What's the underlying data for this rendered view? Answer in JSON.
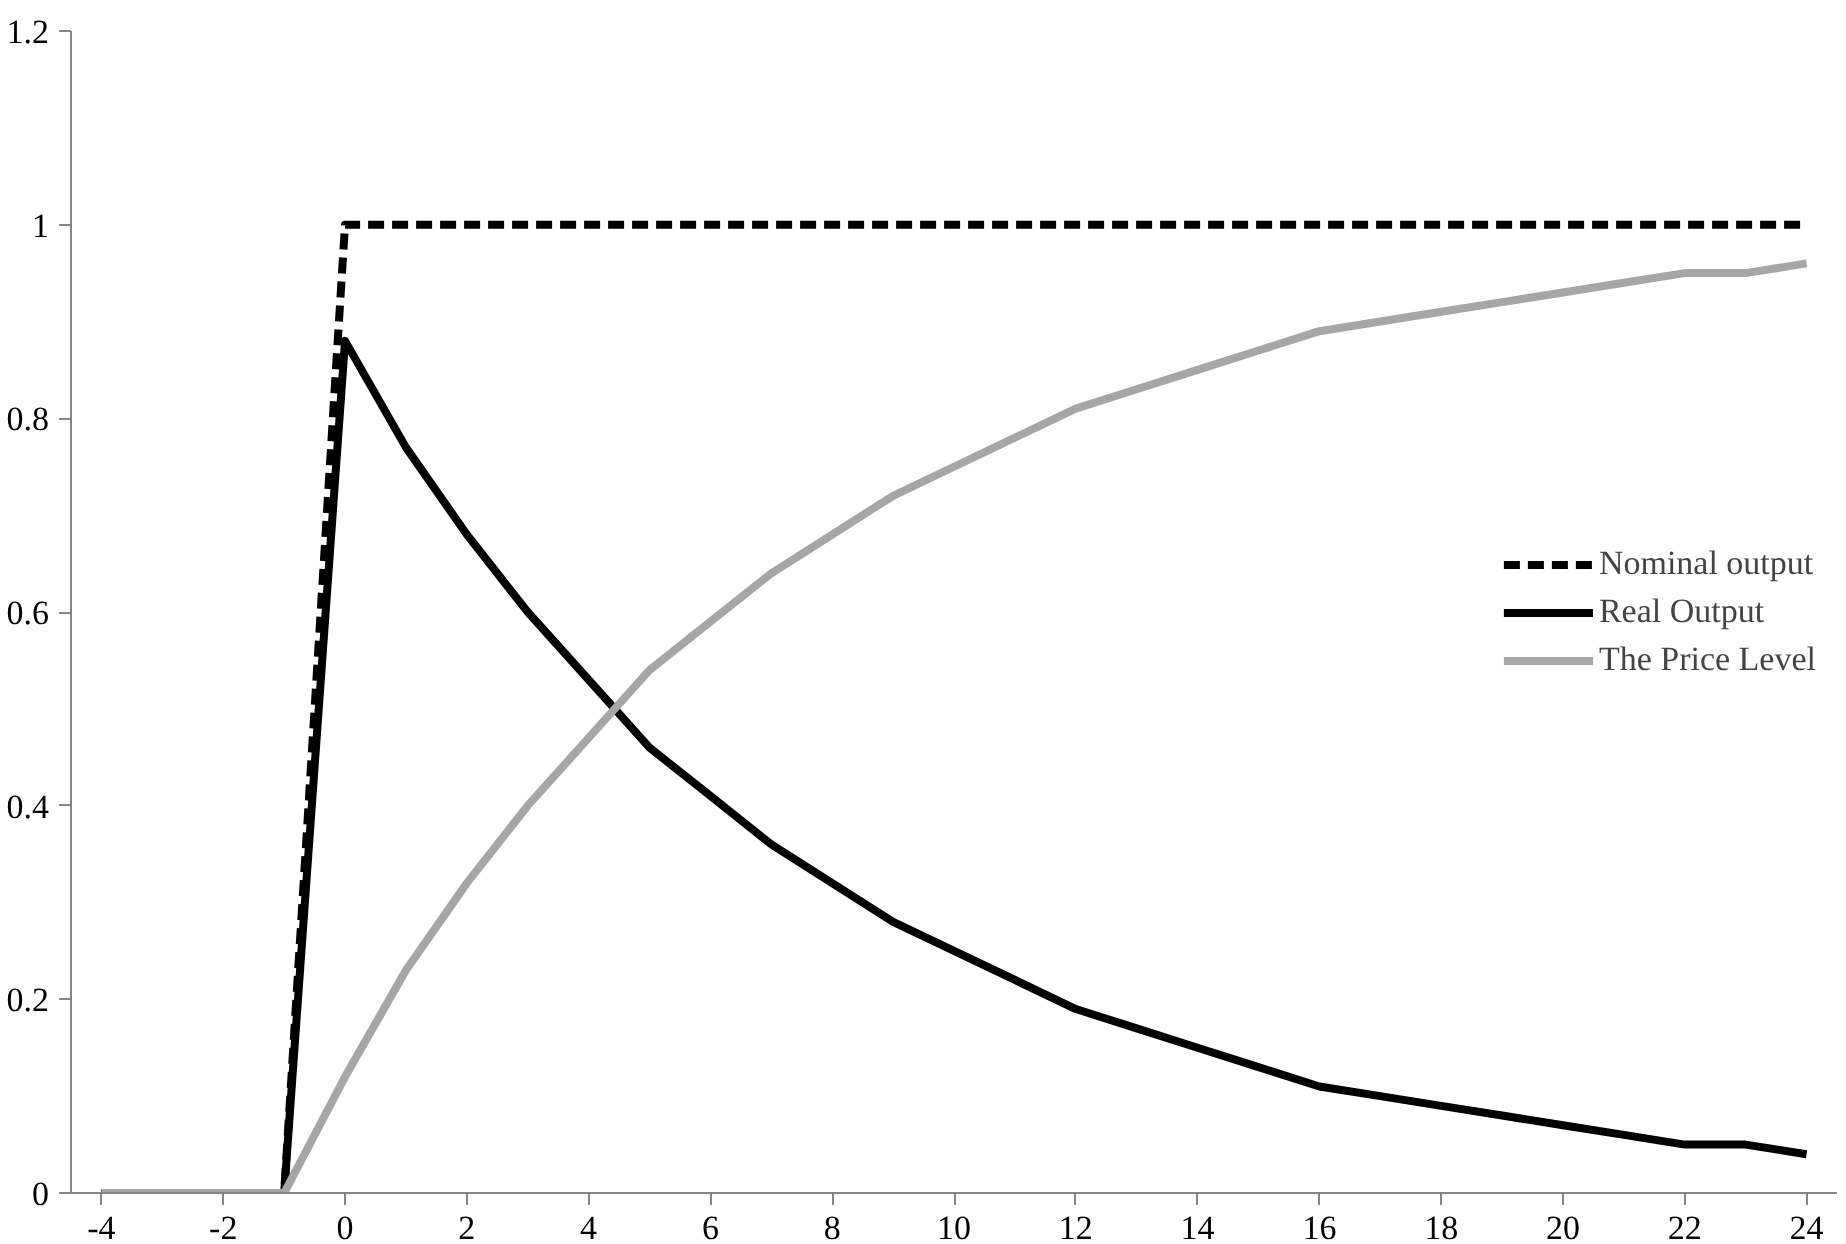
{
  "chart_data": {
    "type": "line",
    "x": [
      -4,
      -3,
      -2,
      -1,
      0,
      1,
      2,
      3,
      4,
      5,
      6,
      7,
      8,
      9,
      10,
      11,
      12,
      13,
      14,
      15,
      16,
      17,
      18,
      19,
      20,
      21,
      22,
      23,
      24
    ],
    "xlim": [
      -4.5,
      24.5
    ],
    "xticks": [
      -4,
      -2,
      0,
      2,
      4,
      6,
      8,
      10,
      12,
      14,
      16,
      18,
      20,
      22,
      24
    ],
    "ylim": [
      0,
      1.2
    ],
    "yticks": [
      0,
      {
        "value": 0.2,
        "label": "0.2"
      },
      {
        "value": 0.4,
        "label": "0.4"
      },
      {
        "value": 0.6,
        "label": "0.6"
      },
      {
        "value": 0.8,
        "label": "0.8"
      },
      1,
      {
        "value": 1.2,
        "label": "1.2"
      }
    ],
    "grid": false,
    "legend": "right",
    "marker": "none",
    "series": [
      {
        "name": "Nominal output",
        "color": "#000000",
        "line_style": "dashed",
        "values": [
          0,
          0,
          0,
          0,
          1,
          1,
          1,
          1,
          1,
          1,
          1,
          1,
          1,
          1,
          1,
          1,
          1,
          1,
          1,
          1,
          1,
          1,
          1,
          1,
          1,
          1,
          1,
          1,
          1
        ]
      },
      {
        "name": "Real Output",
        "color": "#000000",
        "line_style": "solid",
        "values": [
          0,
          0,
          0,
          0,
          0.88,
          0.77,
          0.68,
          0.6,
          0.53,
          0.46,
          0.41,
          0.36,
          0.32,
          0.28,
          0.25,
          0.22,
          0.19,
          0.17,
          0.15,
          0.13,
          0.11,
          0.1,
          0.09,
          0.08,
          0.07,
          0.06,
          0.05,
          0.05,
          0.04
        ]
      },
      {
        "name": "The Price Level",
        "color": "#a6a6a6",
        "line_style": "solid",
        "values": [
          0,
          0,
          0,
          0,
          0.12,
          0.23,
          0.32,
          0.4,
          0.47,
          0.54,
          0.59,
          0.64,
          0.68,
          0.72,
          0.75,
          0.78,
          0.81,
          0.83,
          0.85,
          0.87,
          0.89,
          0.9,
          0.91,
          0.92,
          0.93,
          0.94,
          0.95,
          0.95,
          0.96
        ]
      }
    ]
  }
}
